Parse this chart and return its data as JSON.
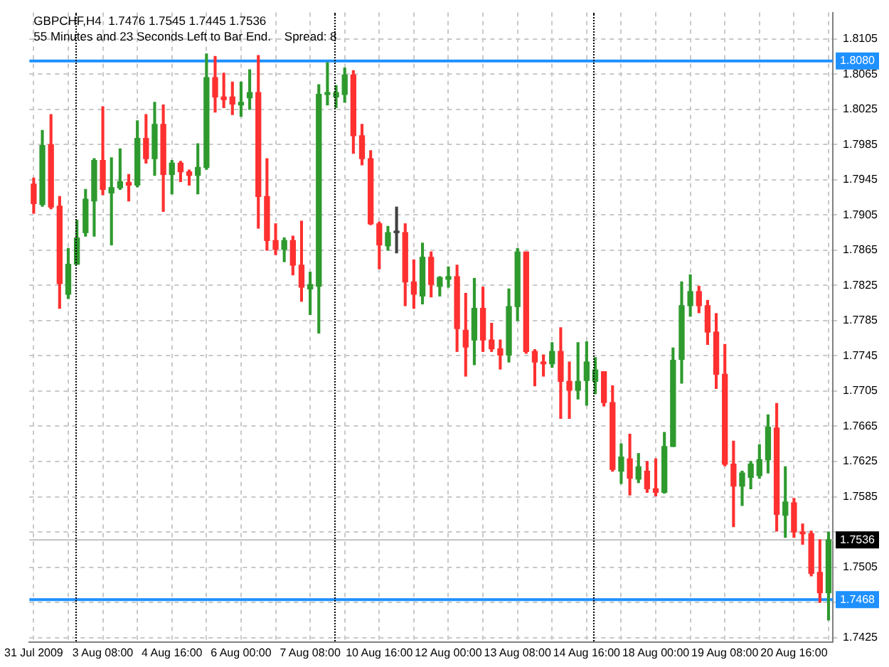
{
  "chart_data": {
    "type": "candlestick",
    "title": "GBPCHF,H4  1.7476 1.7545 1.7445 1.7536",
    "annotations": [
      "55 Minutes and 23 Seconds Left to Bar End.    Spread: 8"
    ],
    "categories": [
      "31 Jul 2009",
      null,
      null,
      null,
      null,
      null,
      null,
      null,
      "3 Aug 08:00",
      null,
      null,
      null,
      null,
      null,
      null,
      null,
      "4 Aug 16:00",
      null,
      null,
      null,
      null,
      null,
      null,
      null,
      "6 Aug 00:00",
      null,
      null,
      null,
      null,
      null,
      null,
      null,
      "7 Aug 08:00",
      null,
      null,
      null,
      null,
      null,
      null,
      null,
      "10 Aug 16:00",
      null,
      null,
      null,
      null,
      null,
      null,
      null,
      "12 Aug 00:00",
      null,
      null,
      null,
      null,
      null,
      null,
      null,
      "13 Aug 08:00",
      null,
      null,
      null,
      null,
      null,
      null,
      null,
      "14 Aug 16:00",
      null,
      null,
      null,
      null,
      null,
      null,
      null,
      "18 Aug 00:00",
      null,
      null,
      null,
      null,
      null,
      null,
      null,
      "19 Aug 08:00",
      null,
      null,
      null,
      null,
      null,
      null,
      null,
      "20 Aug 16:00",
      null,
      null,
      null,
      null
    ],
    "ohlc": [
      [
        1.794,
        1.7947,
        1.7907,
        1.7918
      ],
      [
        1.7917,
        1.8001,
        1.7915,
        1.7984
      ],
      [
        1.7985,
        1.8019,
        1.7912,
        1.7914
      ],
      [
        1.7915,
        1.7926,
        1.7799,
        1.7827
      ],
      [
        1.7815,
        1.7867,
        1.781,
        1.7849
      ],
      [
        1.7849,
        1.7899,
        1.7849,
        1.7879
      ],
      [
        1.7885,
        1.7934,
        1.7881,
        1.7923
      ],
      [
        1.7921,
        1.7969,
        1.7881,
        1.7967
      ],
      [
        1.7967,
        1.8028,
        1.7928,
        1.7934
      ],
      [
        1.793,
        1.797,
        1.7871,
        1.7936
      ],
      [
        1.7936,
        1.798,
        1.7934,
        1.7943
      ],
      [
        1.7942,
        1.7951,
        1.7921,
        1.7939
      ],
      [
        1.7939,
        1.8012,
        1.7937,
        1.7992
      ],
      [
        1.7992,
        1.8019,
        1.7964,
        1.7969
      ],
      [
        1.7969,
        1.8033,
        1.795,
        1.8008
      ],
      [
        1.8008,
        1.803,
        1.7909,
        1.7951
      ],
      [
        1.7951,
        1.7967,
        1.7929,
        1.7964
      ],
      [
        1.7964,
        1.7966,
        1.7943,
        1.7954
      ],
      [
        1.7954,
        1.7956,
        1.7939,
        1.795
      ],
      [
        1.795,
        1.7986,
        1.7929,
        1.7959
      ],
      [
        1.7959,
        1.8088,
        1.7957,
        1.8061
      ],
      [
        1.8061,
        1.8085,
        1.8022,
        1.8039
      ],
      [
        1.8039,
        1.8066,
        1.8027,
        1.8036
      ],
      [
        1.8039,
        1.8056,
        1.8019,
        1.8031
      ],
      [
        1.803,
        1.8056,
        1.8017,
        1.8033
      ],
      [
        1.8038,
        1.807,
        1.8025,
        1.8044
      ],
      [
        1.8044,
        1.8086,
        1.789,
        1.7926
      ],
      [
        1.7926,
        1.7969,
        1.7865,
        1.7876
      ],
      [
        1.7876,
        1.7895,
        1.786,
        1.7866
      ],
      [
        1.7866,
        1.7879,
        1.7852,
        1.7876
      ],
      [
        1.7876,
        1.7881,
        1.7837,
        1.7848
      ],
      [
        1.7848,
        1.7898,
        1.7807,
        1.7823
      ],
      [
        1.7821,
        1.784,
        1.7792,
        1.7826
      ],
      [
        1.7824,
        1.8053,
        1.7771,
        1.8042
      ],
      [
        1.8042,
        1.8078,
        1.803,
        1.8044
      ],
      [
        1.8039,
        1.8052,
        1.8027,
        1.8044
      ],
      [
        1.8042,
        1.8072,
        1.8033,
        1.8064
      ],
      [
        1.8064,
        1.8069,
        1.7975,
        1.7995
      ],
      [
        1.7995,
        1.8008,
        1.7962,
        1.7969
      ],
      [
        1.7969,
        1.7978,
        1.7894,
        1.7895
      ],
      [
        1.7895,
        1.7897,
        1.7844,
        1.7871
      ],
      [
        1.787,
        1.7892,
        1.7865,
        1.7885
      ],
      [
        1.7885,
        1.7914,
        1.7862,
        1.7885
      ],
      [
        1.7885,
        1.7895,
        1.7802,
        1.7829
      ],
      [
        1.7829,
        1.7854,
        1.7799,
        1.7815
      ],
      [
        1.7813,
        1.7873,
        1.7804,
        1.7857
      ],
      [
        1.7857,
        1.7863,
        1.7812,
        1.7826
      ],
      [
        1.7824,
        1.7835,
        1.7813,
        1.7834
      ],
      [
        1.7832,
        1.7846,
        1.7823,
        1.7835
      ],
      [
        1.7835,
        1.7848,
        1.775,
        1.7776
      ],
      [
        1.7774,
        1.7816,
        1.7722,
        1.7755
      ],
      [
        1.7763,
        1.7833,
        1.7735,
        1.7799
      ],
      [
        1.7799,
        1.7823,
        1.775,
        1.7763
      ],
      [
        1.7763,
        1.7782,
        1.775,
        1.7753
      ],
      [
        1.7753,
        1.7763,
        1.773,
        1.7746
      ],
      [
        1.7746,
        1.7821,
        1.7738,
        1.7801
      ],
      [
        1.7801,
        1.7867,
        1.7785,
        1.7863
      ],
      [
        1.7863,
        1.7863,
        1.7748,
        1.775
      ],
      [
        1.775,
        1.7752,
        1.7711,
        1.7738
      ],
      [
        1.7738,
        1.7746,
        1.7722,
        1.7736
      ],
      [
        1.7736,
        1.776,
        1.7732,
        1.775
      ],
      [
        1.775,
        1.7777,
        1.7674,
        1.7716
      ],
      [
        1.7716,
        1.7738,
        1.7674,
        1.7706
      ],
      [
        1.7706,
        1.776,
        1.7696,
        1.7716
      ],
      [
        1.7717,
        1.7761,
        1.7689,
        1.7738
      ],
      [
        1.7716,
        1.7743,
        1.7702,
        1.7729
      ],
      [
        1.7727,
        1.7727,
        1.7688,
        1.7692
      ],
      [
        1.7692,
        1.7711,
        1.7614,
        1.7616
      ],
      [
        1.7614,
        1.7645,
        1.76,
        1.763
      ],
      [
        1.7628,
        1.7656,
        1.7587,
        1.7606
      ],
      [
        1.7605,
        1.7634,
        1.7601,
        1.7619
      ],
      [
        1.7614,
        1.7625,
        1.759,
        1.7594
      ],
      [
        1.7594,
        1.7628,
        1.7586,
        1.759
      ],
      [
        1.759,
        1.7658,
        1.7589,
        1.7642
      ],
      [
        1.7642,
        1.7754,
        1.7642,
        1.774
      ],
      [
        1.7741,
        1.7829,
        1.7714,
        1.7802
      ],
      [
        1.7802,
        1.7837,
        1.779,
        1.7818
      ],
      [
        1.7818,
        1.7824,
        1.7794,
        1.7802
      ],
      [
        1.7802,
        1.7808,
        1.7758,
        1.7772
      ],
      [
        1.7772,
        1.7793,
        1.7708,
        1.7724
      ],
      [
        1.7724,
        1.7758,
        1.762,
        1.7622
      ],
      [
        1.7622,
        1.7648,
        1.7551,
        1.7597
      ],
      [
        1.7597,
        1.7614,
        1.7575,
        1.7612
      ],
      [
        1.7607,
        1.7625,
        1.7594,
        1.7622
      ],
      [
        1.7609,
        1.7644,
        1.7606,
        1.7627
      ],
      [
        1.7627,
        1.7678,
        1.7612,
        1.7664
      ],
      [
        1.7663,
        1.7691,
        1.7546,
        1.7565
      ],
      [
        1.7564,
        1.7619,
        1.7539,
        1.7579
      ],
      [
        1.7578,
        1.7583,
        1.7539,
        1.7545
      ],
      [
        1.7545,
        1.7554,
        1.7531,
        1.7543
      ],
      [
        1.7543,
        1.7546,
        1.7495,
        1.7498
      ],
      [
        1.7499,
        1.7536,
        1.7465,
        1.7476
      ],
      [
        1.7476,
        1.7545,
        1.7445,
        1.7536
      ]
    ],
    "colors": [
      "#ff3030",
      "#2e9a2e",
      "#ff3030",
      "#ff3030",
      "#2e9a2e",
      "#2e9a2e",
      "#2e9a2e",
      "#2e9a2e",
      "#ff3030",
      "#2e9a2e",
      "#2e9a2e",
      "#ff3030",
      "#2e9a2e",
      "#ff3030",
      "#2e9a2e",
      "#ff3030",
      "#2e9a2e",
      "#ff3030",
      "#ff3030",
      "#2e9a2e",
      "#2e9a2e",
      "#ff3030",
      "#ff3030",
      "#ff3030",
      "#2e9a2e",
      "#2e9a2e",
      "#ff3030",
      "#ff3030",
      "#ff3030",
      "#2e9a2e",
      "#ff3030",
      "#ff3030",
      "#2e9a2e",
      "#2e9a2e",
      "#2e9a2e",
      "#2e9a2e",
      "#2e9a2e",
      "#ff3030",
      "#ff3030",
      "#ff3030",
      "#ff3030",
      "#2e9a2e",
      "#404040",
      "#ff3030",
      "#ff3030",
      "#2e9a2e",
      "#ff3030",
      "#2e9a2e",
      "#2e9a2e",
      "#ff3030",
      "#ff3030",
      "#2e9a2e",
      "#ff3030",
      "#ff3030",
      "#ff3030",
      "#2e9a2e",
      "#2e9a2e",
      "#ff3030",
      "#ff3030",
      "#ff3030",
      "#2e9a2e",
      "#ff3030",
      "#ff3030",
      "#2e9a2e",
      "#2e9a2e",
      "#2e9a2e",
      "#ff3030",
      "#ff3030",
      "#2e9a2e",
      "#ff3030",
      "#2e9a2e",
      "#ff3030",
      "#ff3030",
      "#2e9a2e",
      "#2e9a2e",
      "#2e9a2e",
      "#2e9a2e",
      "#ff3030",
      "#ff3030",
      "#ff3030",
      "#ff3030",
      "#ff3030",
      "#2e9a2e",
      "#2e9a2e",
      "#2e9a2e",
      "#2e9a2e",
      "#ff3030",
      "#2e9a2e",
      "#ff3030",
      "#ff3030",
      "#ff3030",
      "#ff3030",
      "#2e9a2e"
    ],
    "ylim": [
      1.742,
      1.8135
    ],
    "yticks": [
      1.8105,
      1.8065,
      1.8025,
      1.7985,
      1.7945,
      1.7905,
      1.7865,
      1.7825,
      1.7785,
      1.7745,
      1.7705,
      1.7665,
      1.7625,
      1.7585,
      {
        "value": 1.7545,
        "label": null
      },
      1.7505,
      {
        "value": 1.7465,
        "label": null
      },
      1.7425
    ],
    "ref_lines": [
      {
        "axis": "y",
        "value": 1.808,
        "label": "1.8080",
        "color": "#1e90ff"
      },
      {
        "axis": "y",
        "value": 1.7468,
        "label": "1.7468",
        "color": "#1e90ff"
      },
      {
        "axis": "y",
        "value": 1.7536,
        "label": "1.7536",
        "color": "#c0c0c0"
      }
    ],
    "grid": true,
    "legend": false
  }
}
